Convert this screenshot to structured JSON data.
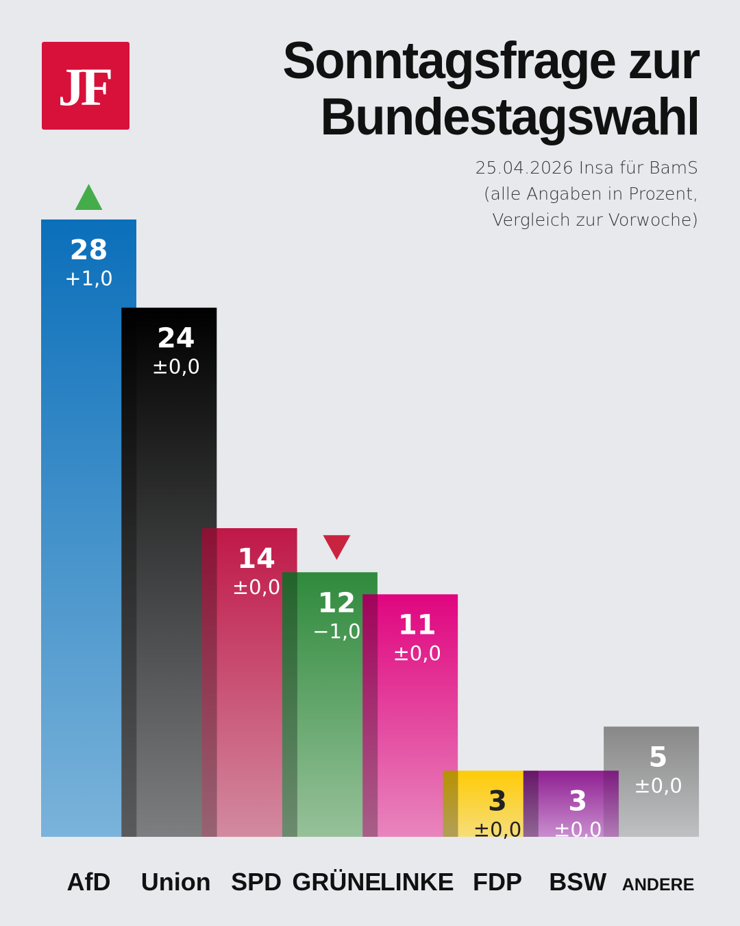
{
  "logo": {
    "text": "JF",
    "color": "#d7113a"
  },
  "header": {
    "title_line1": "Sonntagsfrage zur",
    "title_line2": "Bundestagswahl",
    "subtitle_line1": "25.04.2026 Insa für BamS",
    "subtitle_line2": "(alle Angaben in Prozent,",
    "subtitle_line3": "Vergleich zur Vorwoche)"
  },
  "chart_data": {
    "type": "bar",
    "title": "Sonntagsfrage zur Bundestagswahl",
    "subtitle": "25.04.2026 Insa für BamS (alle Angaben in Prozent, Vergleich zur Vorwoche)",
    "xlabel": "",
    "ylabel": "",
    "ylim": [
      0,
      28
    ],
    "grid": false,
    "categories": [
      "AfD",
      "Union",
      "SPD",
      "GRÜNE",
      "LINKE",
      "FDP",
      "BSW",
      "ANDERE"
    ],
    "values": [
      28,
      24,
      14,
      12,
      11,
      3,
      3,
      5
    ],
    "changes": [
      "+1,0",
      "±0,0",
      "±0,0",
      "−1,0",
      "±0,0",
      "±0,0",
      "±0,0",
      "±0,0"
    ],
    "trend": [
      "up",
      "none",
      "none",
      "down",
      "none",
      "none",
      "none",
      "none"
    ],
    "colors_top": [
      "#0b6fba",
      "#000000",
      "#c01848",
      "#2f8a3c",
      "#e0057f",
      "#ffcb05",
      "#8f1f91",
      "#888888"
    ],
    "colors_bottom": [
      "#7ab3da",
      "#7d7e80",
      "#d28aa0",
      "#97c19a",
      "#e885bd",
      "#f6dd7a",
      "#c98ecf",
      "#bfc0c2"
    ],
    "text_colors": [
      "#ffffff",
      "#ffffff",
      "#ffffff",
      "#ffffff",
      "#ffffff",
      "#222222",
      "#ffffff",
      "#ffffff"
    ],
    "trend_colors": {
      "up": "#44ad4a",
      "down": "#c9243f"
    }
  }
}
